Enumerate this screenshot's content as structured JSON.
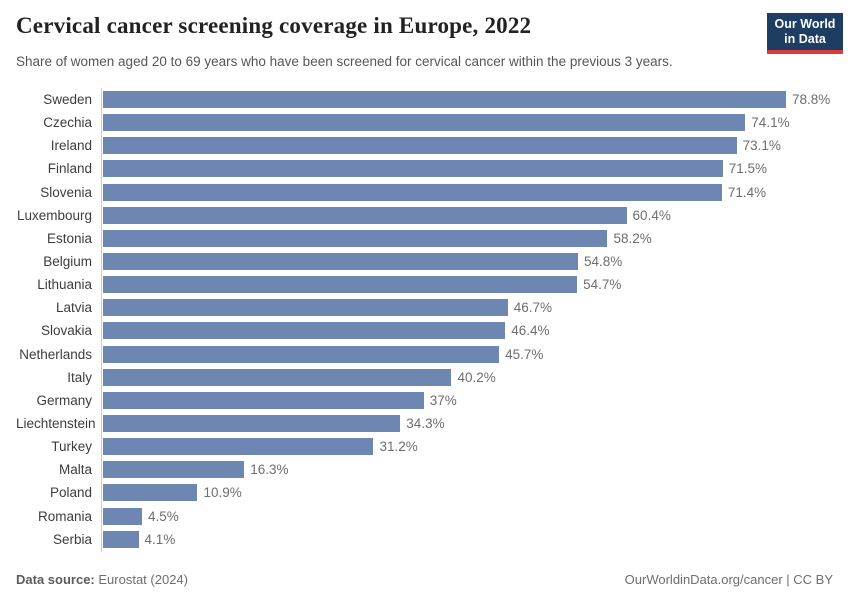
{
  "header": {
    "title": "Cervical cancer screening coverage in Europe, 2022",
    "subtitle": "Share of women aged 20 to 69 years who have been screened for cervical cancer within the previous 3 years.",
    "logo": {
      "line1": "Our World",
      "line2": "in Data",
      "bg_color": "#1d3d63",
      "accent_color": "#d93a3a"
    }
  },
  "chart_data": {
    "type": "bar",
    "orientation": "horizontal",
    "title": "Cervical cancer screening coverage in Europe, 2022",
    "subtitle": "Share of women aged 20 to 69 years who have been screened for cervical cancer within the previous 3 years.",
    "categories": [
      "Sweden",
      "Czechia",
      "Ireland",
      "Finland",
      "Slovenia",
      "Luxembourg",
      "Estonia",
      "Belgium",
      "Lithuania",
      "Latvia",
      "Slovakia",
      "Netherlands",
      "Italy",
      "Germany",
      "Liechtenstein",
      "Turkey",
      "Malta",
      "Poland",
      "Romania",
      "Serbia"
    ],
    "values": [
      78.8,
      74.1,
      73.1,
      71.5,
      71.4,
      60.4,
      58.2,
      54.8,
      54.7,
      46.7,
      46.4,
      45.7,
      40.2,
      37,
      34.3,
      31.2,
      16.3,
      10.9,
      4.5,
      4.1
    ],
    "value_labels": [
      "78.8%",
      "74.1%",
      "73.1%",
      "71.5%",
      "71.4%",
      "60.4%",
      "58.2%",
      "54.8%",
      "54.7%",
      "46.7%",
      "46.4%",
      "45.7%",
      "40.2%",
      "37%",
      "34.3%",
      "31.2%",
      "16.3%",
      "10.9%",
      "4.5%",
      "4.1%"
    ],
    "unit": "%",
    "xlim": [
      0,
      80
    ],
    "bar_color": "#6d87b2",
    "grid": false,
    "legend": false
  },
  "footer": {
    "source_label": "Data source:",
    "source_value": "Eurostat (2024)",
    "credit": "OurWorldinData.org/cancer | CC BY"
  }
}
